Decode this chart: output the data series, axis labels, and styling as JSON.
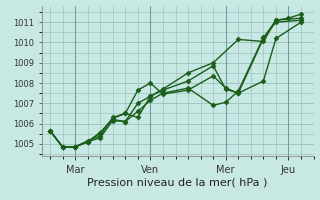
{
  "xlabel": "Pression niveau de la mer( hPa )",
  "background_color": "#c8e8e4",
  "plot_bg_color": "#c8e8e4",
  "grid_color": "#a0c4c0",
  "line_color": "#1a5e1a",
  "ylim": [
    1004.4,
    1011.8
  ],
  "yticks": [
    1005,
    1006,
    1007,
    1008,
    1009,
    1010,
    1011
  ],
  "x_tick_labels": [
    "Mar",
    "Ven",
    "Mer",
    "Jeu"
  ],
  "x_tick_positions": [
    12,
    48,
    84,
    114
  ],
  "vline_positions": [
    12,
    48,
    84,
    114
  ],
  "series": [
    {
      "x": [
        0,
        6,
        12,
        18,
        24,
        30,
        36,
        42,
        48,
        54,
        66,
        78,
        90,
        102,
        108,
        114,
        120
      ],
      "y": [
        1005.65,
        1004.85,
        1004.85,
        1005.1,
        1005.55,
        1006.25,
        1006.5,
        1006.3,
        1007.35,
        1007.7,
        1008.5,
        1009.0,
        1010.15,
        1010.05,
        1011.1,
        1011.2,
        1011.4
      ]
    },
    {
      "x": [
        0,
        6,
        12,
        18,
        24,
        30,
        36,
        42,
        48,
        54,
        66,
        78,
        84,
        90,
        102,
        108,
        120
      ],
      "y": [
        1005.65,
        1004.85,
        1004.85,
        1005.1,
        1005.55,
        1006.2,
        1006.1,
        1006.6,
        1007.15,
        1007.5,
        1007.75,
        1006.9,
        1007.05,
        1007.6,
        1010.25,
        1011.0,
        1011.1
      ]
    },
    {
      "x": [
        0,
        6,
        12,
        18,
        24,
        30,
        36,
        42,
        48,
        54,
        66,
        78,
        84,
        90,
        102,
        108,
        120
      ],
      "y": [
        1005.65,
        1004.85,
        1004.85,
        1005.1,
        1005.3,
        1006.15,
        1006.1,
        1007.0,
        1007.35,
        1007.65,
        1008.1,
        1008.85,
        1007.7,
        1007.5,
        1008.1,
        1010.2,
        1011.0
      ]
    },
    {
      "x": [
        0,
        6,
        12,
        18,
        24,
        30,
        36,
        42,
        48,
        54,
        66,
        78,
        84,
        90,
        102,
        108,
        120
      ],
      "y": [
        1005.65,
        1004.85,
        1004.85,
        1005.15,
        1005.4,
        1006.3,
        1006.5,
        1007.65,
        1008.0,
        1007.45,
        1007.65,
        1008.35,
        1007.75,
        1007.5,
        1010.2,
        1011.1,
        1011.2
      ]
    }
  ],
  "xlim": [
    -4,
    126
  ],
  "marker": "D",
  "markersize": 2.5,
  "linewidth": 1.0,
  "ytick_fontsize": 6,
  "xtick_fontsize": 7,
  "xlabel_fontsize": 8
}
